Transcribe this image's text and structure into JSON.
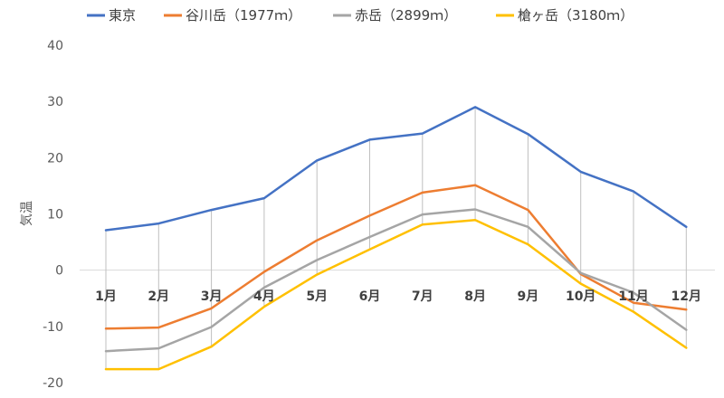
{
  "chart_data": {
    "type": "line",
    "title": "",
    "xlabel": "",
    "ylabel": "気温",
    "ylim": [
      -20,
      40
    ],
    "yticks": [
      -20,
      -10,
      0,
      10,
      20,
      30,
      40
    ],
    "categories": [
      "1月",
      "2月",
      "3月",
      "4月",
      "5月",
      "6月",
      "7月",
      "8月",
      "9月",
      "10月",
      "11月",
      "12月"
    ],
    "legend_position": "top",
    "drop_lines": true,
    "series": [
      {
        "name": "東京",
        "color": "#4472C4",
        "values": [
          7.1,
          8.3,
          10.7,
          12.8,
          19.5,
          23.2,
          24.3,
          29.0,
          24.2,
          17.5,
          14.0,
          7.7
        ]
      },
      {
        "name": "谷川岳（1977ｍ）",
        "color": "#ED7D31",
        "values": [
          -10.4,
          -10.2,
          -6.8,
          -0.3,
          5.3,
          9.7,
          13.8,
          15.1,
          10.7,
          -0.7,
          -5.8,
          -7.0
        ]
      },
      {
        "name": "赤岳（2899ｍ）",
        "color": "#A5A5A5",
        "values": [
          -14.4,
          -13.9,
          -10.1,
          -3.1,
          1.8,
          5.9,
          9.9,
          10.8,
          7.7,
          -0.5,
          -4.0,
          -10.6
        ]
      },
      {
        "name": "槍ヶ岳（3180ｍ）",
        "color": "#FFC000",
        "values": [
          -17.6,
          -17.6,
          -13.6,
          -6.5,
          -0.8,
          3.7,
          8.1,
          8.9,
          4.6,
          -2.4,
          -7.4,
          -13.8
        ]
      }
    ]
  }
}
